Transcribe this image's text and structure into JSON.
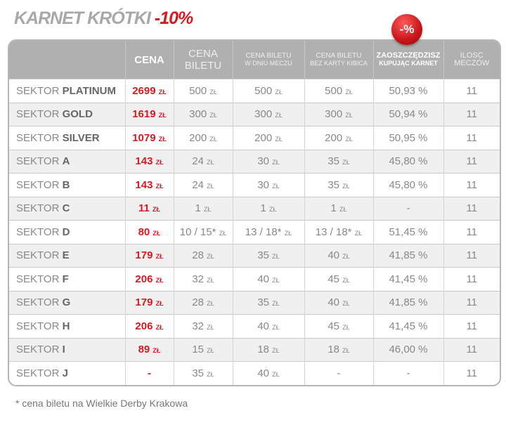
{
  "title": {
    "main": "KARNET KRÓTKI",
    "discount": "-10%"
  },
  "badge": "-%",
  "headers": {
    "cena": "CENA",
    "cena_biletu": [
      "CENA",
      "BILETU"
    ],
    "dzien": [
      "CENA BILETU",
      "W DNIU MECZU"
    ],
    "bez_karty": [
      "CENA BILETU",
      "BEZ KARTY KIBICA"
    ],
    "zaoszczedzisz": [
      "ZAOSZCZĘDZISZ",
      "KUPUJĄC KARNET"
    ],
    "ilosc": [
      "ILOSC",
      "MECZÓW"
    ]
  },
  "currency": "ZŁ",
  "rows": [
    {
      "prefix": "SEKTOR",
      "name": "PLATINUM",
      "cena": "2699",
      "bilet": "500",
      "dzien": "500",
      "bez": "500",
      "save": "50,93 %",
      "mecze": "11"
    },
    {
      "prefix": "SEKTOR",
      "name": "GOLD",
      "cena": "1619",
      "bilet": "300",
      "dzien": "300",
      "bez": "300",
      "save": "50,94 %",
      "mecze": "11"
    },
    {
      "prefix": "SEKTOR",
      "name": "SILVER",
      "cena": "1079",
      "bilet": "200",
      "dzien": "200",
      "bez": "200",
      "save": "50,95 %",
      "mecze": "11"
    },
    {
      "prefix": "SEKTOR",
      "name": "A",
      "cena": "143",
      "bilet": "24",
      "dzien": "30",
      "bez": "35",
      "save": "45,80 %",
      "mecze": "11"
    },
    {
      "prefix": "SEKTOR",
      "name": "B",
      "cena": "143",
      "bilet": "24",
      "dzien": "30",
      "bez": "35",
      "save": "45,80 %",
      "mecze": "11"
    },
    {
      "prefix": "SEKTOR",
      "name": "C",
      "cena": "11",
      "bilet": "1",
      "dzien": "1",
      "bez": "1",
      "save": "-",
      "mecze": "11"
    },
    {
      "prefix": "SEKTOR",
      "name": "D",
      "cena": "80",
      "bilet": "10 / 15*",
      "dzien": "13 / 18*",
      "bez": "13 / 18*",
      "save": "51,45 %",
      "mecze": "11"
    },
    {
      "prefix": "SEKTOR",
      "name": "E",
      "cena": "179",
      "bilet": "28",
      "dzien": "35",
      "bez": "40",
      "save": "41,85 %",
      "mecze": "11"
    },
    {
      "prefix": "SEKTOR",
      "name": "F",
      "cena": "206",
      "bilet": "32",
      "dzien": "40",
      "bez": "45",
      "save": "41,45 %",
      "mecze": "11"
    },
    {
      "prefix": "SEKTOR",
      "name": "G",
      "cena": "179",
      "bilet": "28",
      "dzien": "35",
      "bez": "40",
      "save": "41,85 %",
      "mecze": "11"
    },
    {
      "prefix": "SEKTOR",
      "name": "H",
      "cena": "206",
      "bilet": "32",
      "dzien": "40",
      "bez": "45",
      "save": "41,45 %",
      "mecze": "11"
    },
    {
      "prefix": "SEKTOR",
      "name": "I",
      "cena": "89",
      "bilet": "15",
      "dzien": "18",
      "bez": "18",
      "save": "46,00 %",
      "mecze": "11"
    },
    {
      "prefix": "SEKTOR",
      "name": "J",
      "cena": "-",
      "bilet": "35",
      "dzien": "40",
      "bez": "-",
      "save": "-",
      "mecze": "11"
    }
  ],
  "footnote": "* cena biletu na Wielkie Derby Krakowa"
}
